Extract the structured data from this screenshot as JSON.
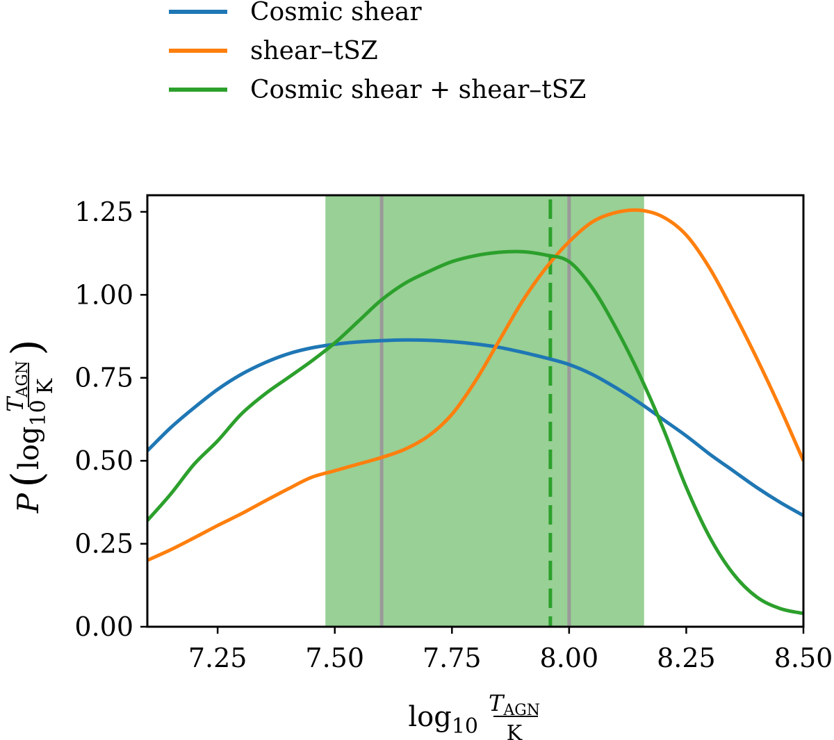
{
  "chart_data": {
    "type": "line",
    "title": "",
    "xlabel": "log10 TAGN/K",
    "ylabel": "P(log10 TAGN/K)",
    "xlim": [
      7.1,
      8.5
    ],
    "ylim": [
      0.0,
      1.3
    ],
    "x_ticks": [
      7.25,
      7.5,
      7.75,
      8.0,
      8.25,
      8.5
    ],
    "x_tick_labels": [
      "7.25",
      "7.50",
      "7.75",
      "8.00",
      "8.25",
      "8.50"
    ],
    "y_ticks": [
      0.0,
      0.25,
      0.5,
      0.75,
      1.0,
      1.25
    ],
    "y_tick_labels": [
      "0.00",
      "0.25",
      "0.50",
      "0.75",
      "1.00",
      "1.25"
    ],
    "grid": false,
    "legend_position": "above plot, top-left",
    "shaded_region": {
      "x": [
        7.48,
        8.16
      ],
      "color": "#98d095"
    },
    "vertical_lines": [
      {
        "x": 7.6,
        "style": "solid",
        "color": "#9a9a9a"
      },
      {
        "x": 8.0,
        "style": "solid",
        "color": "#9a9a9a"
      },
      {
        "x": 7.96,
        "style": "dashed",
        "color": "#2ca02c"
      }
    ],
    "series": [
      {
        "name": "Cosmic shear",
        "color": "#1f77b4",
        "x": [
          7.1,
          7.15,
          7.2,
          7.25,
          7.3,
          7.35,
          7.4,
          7.45,
          7.5,
          7.55,
          7.6,
          7.65,
          7.7,
          7.75,
          7.8,
          7.85,
          7.9,
          7.95,
          8.0,
          8.05,
          8.1,
          8.15,
          8.2,
          8.25,
          8.3,
          8.35,
          8.4,
          8.45,
          8.5
        ],
        "y": [
          0.53,
          0.6,
          0.66,
          0.715,
          0.76,
          0.795,
          0.822,
          0.84,
          0.851,
          0.858,
          0.862,
          0.864,
          0.863,
          0.859,
          0.852,
          0.842,
          0.827,
          0.81,
          0.79,
          0.76,
          0.72,
          0.675,
          0.625,
          0.575,
          0.52,
          0.47,
          0.42,
          0.375,
          0.335
        ]
      },
      {
        "name": "shear–tSZ",
        "color": "#ff7f0e",
        "x": [
          7.1,
          7.15,
          7.2,
          7.25,
          7.3,
          7.35,
          7.4,
          7.45,
          7.5,
          7.55,
          7.6,
          7.65,
          7.7,
          7.75,
          7.8,
          7.85,
          7.9,
          7.95,
          8.0,
          8.05,
          8.1,
          8.15,
          8.2,
          8.25,
          8.3,
          8.35,
          8.4,
          8.45,
          8.5
        ],
        "y": [
          0.2,
          0.232,
          0.268,
          0.305,
          0.34,
          0.378,
          0.415,
          0.45,
          0.47,
          0.49,
          0.51,
          0.535,
          0.575,
          0.64,
          0.74,
          0.86,
          0.98,
          1.08,
          1.16,
          1.22,
          1.248,
          1.255,
          1.235,
          1.18,
          1.08,
          0.95,
          0.81,
          0.66,
          0.5
        ]
      },
      {
        "name": "Cosmic shear + shear–tSZ",
        "color": "#2ca02c",
        "x": [
          7.1,
          7.15,
          7.2,
          7.25,
          7.3,
          7.35,
          7.4,
          7.45,
          7.5,
          7.55,
          7.6,
          7.65,
          7.7,
          7.75,
          7.8,
          7.85,
          7.9,
          7.95,
          8.0,
          8.05,
          8.1,
          8.15,
          8.2,
          8.25,
          8.3,
          8.35,
          8.4,
          8.45,
          8.5
        ],
        "y": [
          0.32,
          0.4,
          0.49,
          0.56,
          0.64,
          0.7,
          0.75,
          0.8,
          0.855,
          0.92,
          0.985,
          1.035,
          1.07,
          1.1,
          1.118,
          1.128,
          1.13,
          1.12,
          1.1,
          1.02,
          0.9,
          0.76,
          0.6,
          0.42,
          0.27,
          0.16,
          0.09,
          0.055,
          0.04
        ]
      }
    ]
  }
}
